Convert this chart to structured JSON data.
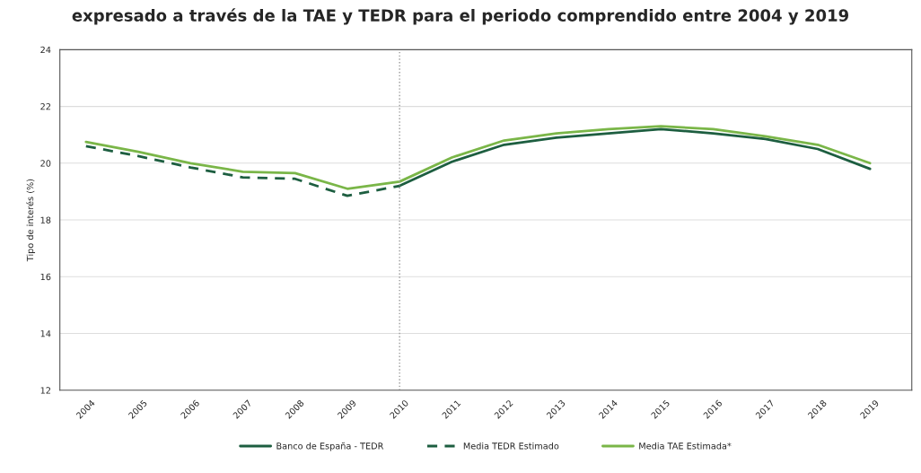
{
  "chart_data": {
    "type": "line",
    "title": "expresado a través de la TAE y TEDR para el periodo comprendido entre 2004 y 2019",
    "ylabel": "Tipo de interés (%)",
    "x": [
      2004,
      2005,
      2006,
      2007,
      2008,
      2009,
      2010,
      2011,
      2012,
      2013,
      2014,
      2015,
      2016,
      2017,
      2018,
      2019
    ],
    "series": [
      {
        "name": "Banco de España - TEDR",
        "color": "#1d5e40",
        "line_style": "solid",
        "values": [
          null,
          null,
          null,
          null,
          null,
          null,
          19.2,
          20.05,
          20.65,
          20.9,
          21.05,
          21.2,
          21.05,
          20.85,
          20.5,
          19.8
        ]
      },
      {
        "name": "Media TEDR Estimado",
        "color": "#1d5e40",
        "line_style": "dashed",
        "values": [
          20.6,
          20.25,
          19.85,
          19.5,
          19.45,
          18.85,
          19.2,
          null,
          null,
          null,
          null,
          null,
          null,
          null,
          null,
          null
        ]
      },
      {
        "name": "Media TAE Estimada*",
        "color": "#7ab648",
        "line_style": "solid",
        "values": [
          20.75,
          20.4,
          20.0,
          19.7,
          19.65,
          19.1,
          19.35,
          20.2,
          20.8,
          21.05,
          21.2,
          21.3,
          21.2,
          20.95,
          20.65,
          20.0
        ]
      }
    ],
    "xlim": [
      2003.5,
      2019.8
    ],
    "xticks": [
      2004,
      2005,
      2006,
      2007,
      2008,
      2009,
      2010,
      2011,
      2012,
      2013,
      2014,
      2015,
      2016,
      2017,
      2018,
      2019
    ],
    "ylim": [
      12,
      24
    ],
    "yticks": [
      12,
      14,
      16,
      18,
      20,
      22,
      24
    ],
    "ref_lines": [
      {
        "axis": "x",
        "value": 2010,
        "color": "#999999",
        "line_style": "dotted"
      }
    ],
    "grid": "y",
    "legend": "bottom",
    "marker": "none"
  }
}
